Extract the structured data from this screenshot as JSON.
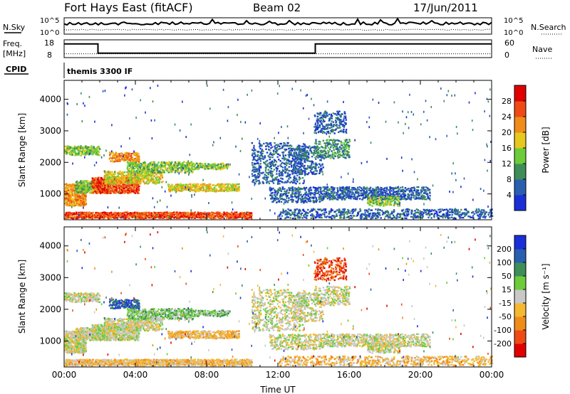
{
  "header": {
    "station": "Fort Hays East (fitACF)",
    "beam": "Beam 02",
    "date": "17/Jun/2011"
  },
  "left_labels": {
    "nsky": "N.Sky",
    "freq": "Freq.",
    "mhz": "[MHz]",
    "cpid": "CPID"
  },
  "right_labels": {
    "nsearch": "N.Search",
    "nave": "Nave"
  },
  "cpid_text": "themis 3300 IF",
  "colors": {
    "power": [
      "#1a2fd8",
      "#2a5fb0",
      "#3e8e58",
      "#6ccc3a",
      "#e6c81e",
      "#f08c1a",
      "#f04a14",
      "#e00000"
    ],
    "velocity": [
      "#e00000",
      "#f04a14",
      "#f08c1a",
      "#f5b830",
      "#c8c8c8",
      "#6ccc3a",
      "#3e8e58",
      "#2a5fb0",
      "#1a2fd8"
    ]
  },
  "chart_data": [
    {
      "type": "line",
      "panel": "noise",
      "xlabel": "",
      "ylabel": "N.Sky",
      "y2label": "N.Search",
      "ytick_labels": [
        "10^5",
        "10^0"
      ],
      "y2tick_labels": [
        "10^5",
        "10^0"
      ],
      "x": [
        "00:00",
        "24:00"
      ],
      "series": [
        {
          "name": "N.Sky",
          "style": "solid",
          "level": "high, noisy"
        },
        {
          "name": "N.Search",
          "style": "dotted",
          "level": "low"
        }
      ]
    },
    {
      "type": "line",
      "panel": "frequency",
      "ylabel": "Freq. [MHz]",
      "y2label": "Nave",
      "ylim": [
        8,
        18
      ],
      "y2lim": [
        0,
        60
      ],
      "ytick_labels": [
        "18",
        "8"
      ],
      "y2tick_labels": [
        "60",
        "0"
      ],
      "series": [
        {
          "name": "Freq.",
          "style": "solid",
          "x_hours": [
            0.0,
            1.9,
            1.9,
            14.1,
            14.1,
            24.0
          ],
          "y": [
            15.7,
            15.7,
            10.5,
            10.5,
            15.7,
            15.7
          ]
        },
        {
          "name": "Nave",
          "style": "dotted",
          "x_hours": [
            0.0,
            24.0
          ],
          "y": [
            13,
            13
          ]
        }
      ]
    },
    {
      "type": "heatmap",
      "panel": "power",
      "ylabel": "Slant Range [km]",
      "colorbar_label": "Power [dB]",
      "colorbar_ticks": [
        "28",
        "24",
        "20",
        "16",
        "12",
        "8",
        "4"
      ],
      "ylim": [
        180,
        4600
      ],
      "yticks": [
        1000,
        2000,
        3000,
        4000
      ],
      "xlim_hours": [
        0,
        24
      ],
      "grid": false
    },
    {
      "type": "heatmap",
      "panel": "velocity",
      "ylabel": "Slant Range [km]",
      "colorbar_label": "Velocity [m s⁻¹]",
      "colorbar_ticks": [
        "200",
        "100",
        "50",
        "15",
        "-15",
        "-50",
        "-100",
        "-200"
      ],
      "ylim": [
        180,
        4600
      ],
      "yticks": [
        1000,
        2000,
        3000,
        4000
      ],
      "xlim_hours": [
        0,
        24
      ],
      "xlabel": "Time UT",
      "xtick_labels": [
        "00:00",
        "04:00",
        "08:00",
        "12:00",
        "16:00",
        "20:00",
        "00:00"
      ],
      "grid": false
    }
  ]
}
